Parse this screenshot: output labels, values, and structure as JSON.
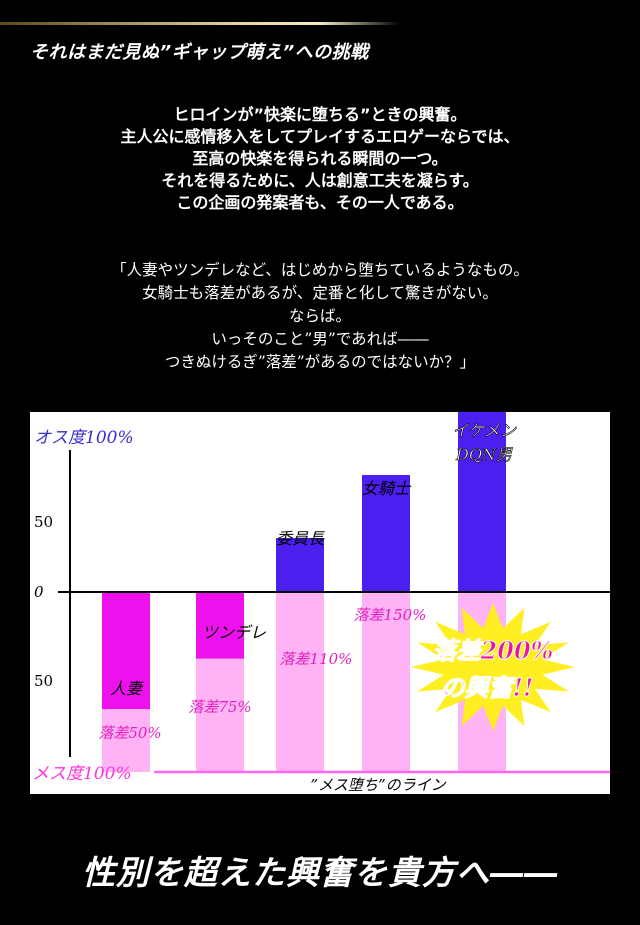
{
  "heading": "それはまだ見ぬ”ギャップ萌え”への挑戦",
  "intro": [
    "ヒロインが”快楽に堕ちる”ときの興奮。",
    "主人公に感情移入をしてプレイするエロゲーならでは、",
    "至高の快楽を得られる瞬間の一つ。",
    "それを得るために、人は創意工夫を凝らす。",
    "この企画の発案者も、その一人である。"
  ],
  "quote": [
    "「人妻やツンデレなど、はじめから堕ちているようなもの。",
    "女騎士も落差があるが、定番と化して驚きがない。",
    "ならば。",
    "いっそのこと”男”であれば――",
    "つきぬけるぎ”落差”があるのではないか？」"
  ],
  "chart_data": {
    "type": "bar",
    "y_top_label": "オス度100%",
    "y_bottom_label": "メス度100%",
    "y_ticks": [
      "50",
      "0",
      "50"
    ],
    "baseline_label": "”メス堕ち”のライン",
    "ylim": [
      -100,
      100
    ],
    "categories": [
      "人妻",
      "ツンデレ",
      "委員長",
      "女騎士",
      "イケメンDQN男"
    ],
    "name_lines": [
      [
        "人妻"
      ],
      [
        "ツンデレ"
      ],
      [
        "委員長"
      ],
      [
        "女騎士"
      ],
      [
        "イケメン",
        "DQN男"
      ]
    ],
    "values": [
      -65,
      -37,
      30,
      65,
      115
    ],
    "drop_labels": [
      "落差50%",
      "落差75%",
      "落差110%",
      "落差150%",
      ""
    ],
    "colors": {
      "bar_male": "#4a1ff0",
      "bar_female": "#ee11ee",
      "pink_light": "#ffb3f4",
      "meth_line": "#ff66ee",
      "axis_label": "#3a2fd0",
      "bottom_label": "#ff33dd",
      "drop_text": "#e020c0",
      "burst_fill": "#ffee22",
      "burst_text": "#ee1199"
    },
    "highlight": {
      "line1": "落差200%",
      "line2": "の興奮!!"
    }
  },
  "footer": "性別を超えた興奮を貴方へ――"
}
